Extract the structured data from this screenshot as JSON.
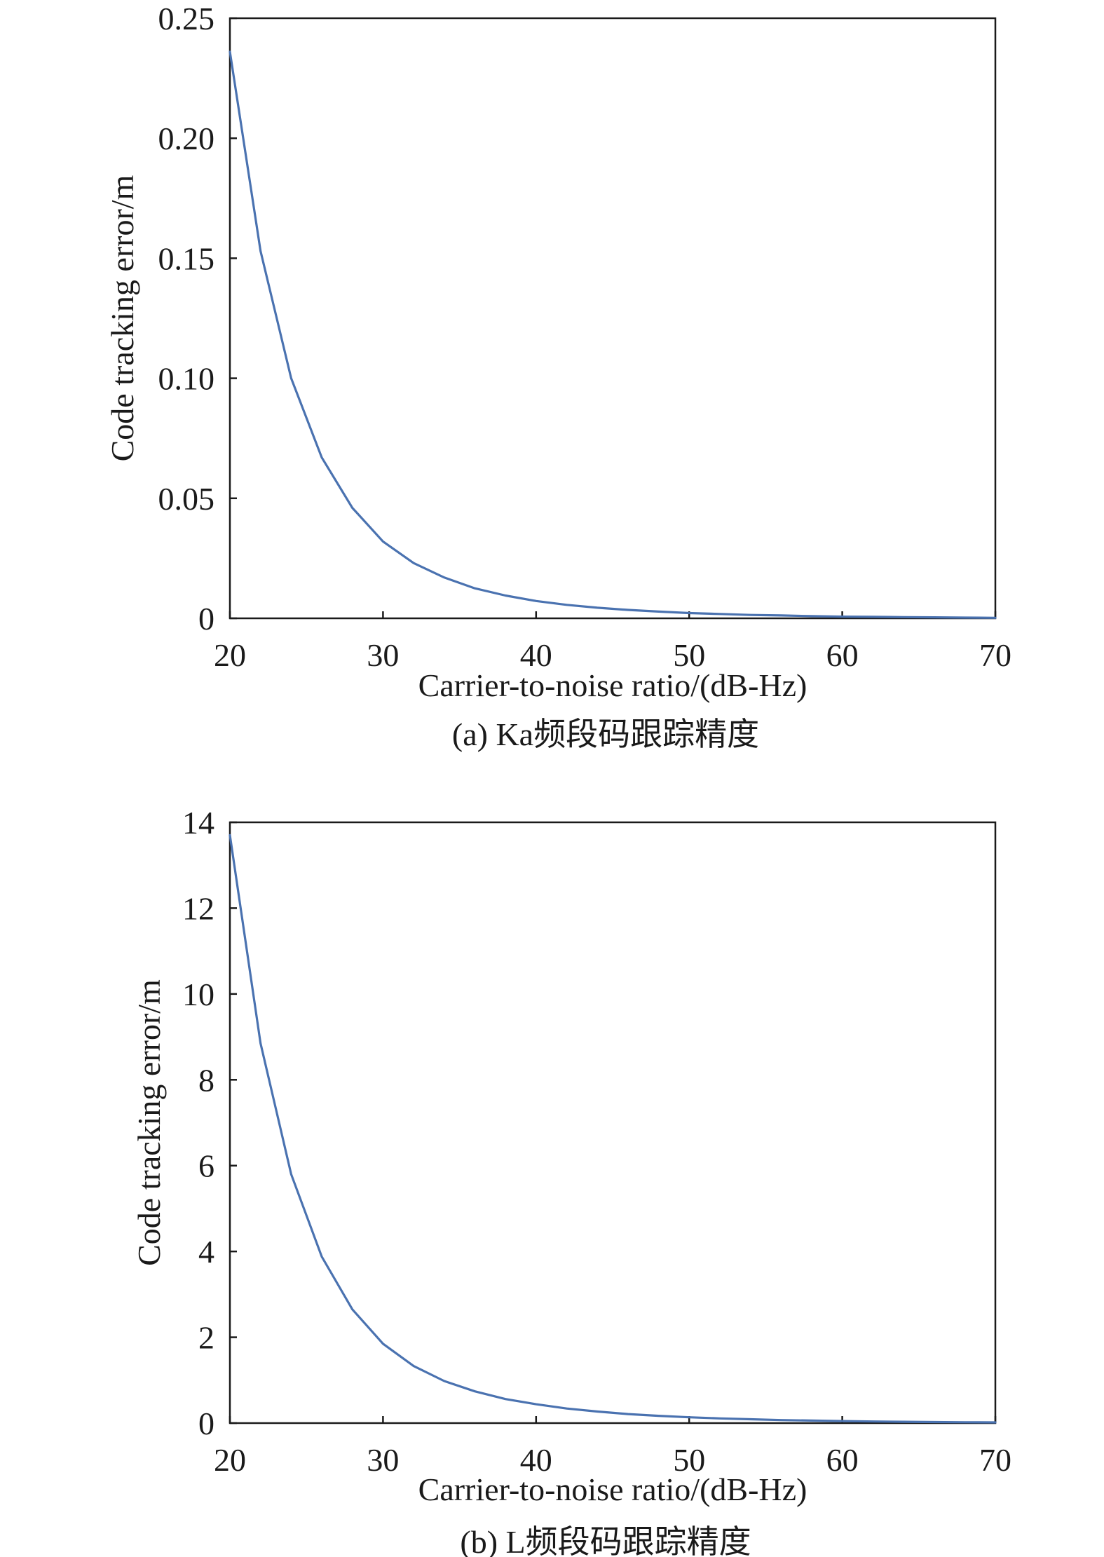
{
  "chart_data": [
    {
      "type": "line",
      "panel": "a",
      "caption": "(a) Ka频段码跟踪精度",
      "xlabel": "Carrier-to-noise ratio/(dB-Hz)",
      "ylabel": "Code tracking error/m",
      "xlim": [
        20,
        70
      ],
      "ylim": [
        0,
        0.25
      ],
      "xticks": [
        20,
        30,
        40,
        50,
        60,
        70
      ],
      "yticks": [
        0,
        0.05,
        0.1,
        0.15,
        0.2,
        0.25
      ],
      "ytick_labels": [
        "0",
        "0.05",
        "0.10",
        "0.15",
        "0.20",
        "0.25"
      ],
      "xtick_labels": [
        "20",
        "30",
        "40",
        "50",
        "60",
        "70"
      ],
      "grid": false,
      "color": "#4a72b0",
      "series": [
        {
          "x": [
            20,
            22,
            24,
            26,
            28,
            30,
            32,
            34,
            36,
            38,
            40,
            42,
            44,
            46,
            48,
            50,
            52,
            54,
            56,
            58,
            60,
            62,
            64,
            66,
            68,
            70
          ],
          "values": [
            0.236,
            0.153,
            0.1,
            0.067,
            0.046,
            0.032,
            0.023,
            0.017,
            0.0125,
            0.0095,
            0.0072,
            0.0056,
            0.0044,
            0.0035,
            0.0028,
            0.0022,
            0.0018,
            0.0014,
            0.0012,
            0.0009,
            0.0007,
            0.0006,
            0.0005,
            0.0004,
            0.0003,
            0.0002
          ]
        }
      ]
    },
    {
      "type": "line",
      "panel": "b",
      "caption": "(b) L频段码跟踪精度",
      "xlabel": "Carrier-to-noise ratio/(dB-Hz)",
      "ylabel": "Code tracking error/m",
      "xlim": [
        20,
        70
      ],
      "ylim": [
        0,
        14
      ],
      "xticks": [
        20,
        30,
        40,
        50,
        60,
        70
      ],
      "yticks": [
        0,
        2,
        4,
        6,
        8,
        10,
        12,
        14
      ],
      "ytick_labels": [
        "0",
        "2",
        "4",
        "6",
        "8",
        "10",
        "12",
        "14"
      ],
      "xtick_labels": [
        "20",
        "30",
        "40",
        "50",
        "60",
        "70"
      ],
      "grid": false,
      "color": "#4a72b0",
      "series": [
        {
          "x": [
            20,
            22,
            24,
            26,
            28,
            30,
            32,
            34,
            36,
            38,
            40,
            42,
            44,
            46,
            48,
            50,
            52,
            54,
            56,
            58,
            60,
            62,
            64,
            66,
            68,
            70
          ],
          "values": [
            13.7,
            8.85,
            5.8,
            3.88,
            2.65,
            1.85,
            1.33,
            0.98,
            0.74,
            0.56,
            0.44,
            0.34,
            0.27,
            0.21,
            0.17,
            0.135,
            0.11,
            0.09,
            0.07,
            0.058,
            0.047,
            0.038,
            0.031,
            0.025,
            0.02,
            0.016
          ]
        }
      ]
    }
  ]
}
